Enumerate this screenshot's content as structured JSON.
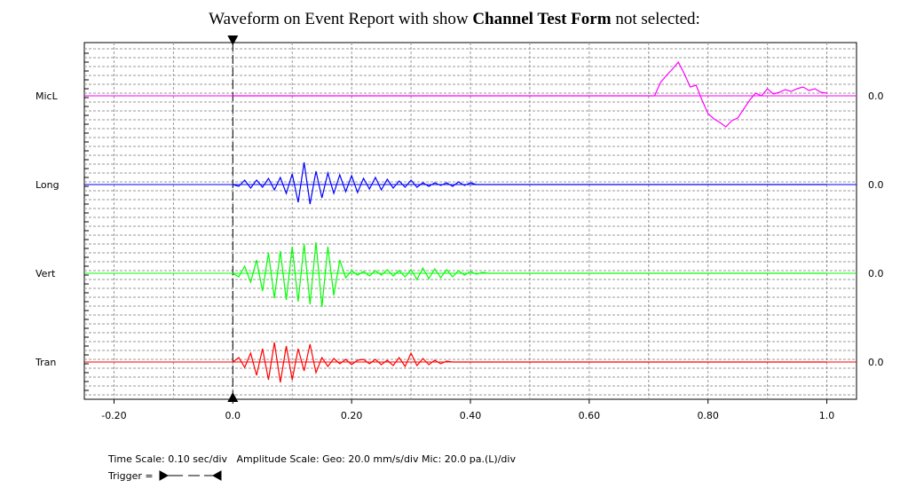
{
  "chart_data": {
    "type": "line",
    "title_parts": [
      "Waveform on Event Report with show ",
      "Channel Test Form",
      " not selected:"
    ],
    "x": [
      0,
      0.01,
      0.02,
      0.03,
      0.04,
      0.05,
      0.06,
      0.07,
      0.08,
      0.09,
      0.1,
      0.11,
      0.12,
      0.13,
      0.14,
      0.15,
      0.16,
      0.17,
      0.18,
      0.19,
      0.2,
      0.21,
      0.22,
      0.23,
      0.24,
      0.25,
      0.26,
      0.27,
      0.28,
      0.29,
      0.3,
      0.31,
      0.32,
      0.33,
      0.34,
      0.35,
      0.36,
      0.37,
      0.38,
      0.39,
      0.4,
      0.41,
      0.42,
      0.43,
      0.44,
      0.45,
      0.46,
      0.47,
      0.48,
      0.49,
      0.5,
      0.51,
      0.52,
      0.53,
      0.54,
      0.55,
      0.56,
      0.57,
      0.58,
      0.59,
      0.6,
      0.61,
      0.62,
      0.63,
      0.64,
      0.65,
      0.66,
      0.67,
      0.68,
      0.69,
      0.7,
      0.71,
      0.72,
      0.73,
      0.74,
      0.75,
      0.76,
      0.77,
      0.78,
      0.79,
      0.8,
      0.81,
      0.82,
      0.83,
      0.84,
      0.85,
      0.86,
      0.87,
      0.88,
      0.89,
      0.9,
      0.91,
      0.92,
      0.93,
      0.94,
      0.95,
      0.96,
      0.97,
      0.98,
      0.99,
      1.0
    ],
    "xlim": [
      -0.25,
      1.05
    ],
    "xticks": [
      {
        "value": -0.2,
        "label": "-0.20"
      },
      {
        "value": 0,
        "label": "0.0"
      },
      {
        "value": 0.2,
        "label": "0.20"
      },
      {
        "value": 0.4,
        "label": "0.40"
      },
      {
        "value": 0.6,
        "label": "0.60"
      },
      {
        "value": 0.8,
        "label": "0.80"
      },
      {
        "value": 1.0,
        "label": "1.0"
      }
    ],
    "xgrid": [
      -0.2,
      -0.1,
      0,
      0.1,
      0.2,
      0.3,
      0.4,
      0.5,
      0.6,
      0.7,
      0.8,
      0.9,
      1.0
    ],
    "ylim": [
      -100,
      100
    ],
    "trigger": 0,
    "baseline": {
      "value": 0,
      "label": "0.0"
    },
    "series": [
      {
        "name": "MicL",
        "color": "#ff00ff",
        "values": [
          0,
          0,
          0,
          0,
          0,
          0,
          0,
          0,
          0,
          0,
          0,
          0,
          0,
          0,
          0,
          0,
          0,
          0,
          0,
          0,
          0,
          0,
          0,
          0,
          0,
          0,
          0,
          0,
          0,
          0,
          0,
          0,
          0,
          0,
          0,
          0,
          0,
          0,
          0,
          0,
          0,
          0,
          0,
          0,
          0,
          0,
          0,
          0,
          0,
          0,
          0,
          0,
          0,
          0,
          0,
          0,
          0,
          0,
          0,
          0,
          0,
          0,
          0,
          0,
          0,
          0,
          0,
          0,
          0,
          0,
          0,
          0,
          30,
          46,
          60,
          76,
          50,
          20,
          24,
          -10,
          -40,
          -52,
          -60,
          -70,
          -56,
          -50,
          -30,
          -10,
          6,
          0,
          16,
          4,
          8,
          14,
          10,
          16,
          20,
          12,
          16,
          8,
          6
        ]
      },
      {
        "name": "Long",
        "color": "#0000ff",
        "values": [
          0,
          -4,
          10,
          -8,
          10,
          -6,
          14,
          -12,
          16,
          -20,
          24,
          -40,
          50,
          -44,
          30,
          -30,
          26,
          -20,
          22,
          -16,
          20,
          -18,
          14,
          -10,
          16,
          -12,
          12,
          -8,
          8,
          -6,
          10,
          -6,
          4,
          -4,
          4,
          -2,
          4,
          -4,
          6,
          -2,
          4,
          0,
          0,
          0,
          0,
          0,
          0,
          0,
          0,
          0,
          0,
          0,
          0,
          0,
          0,
          0,
          0,
          0,
          0,
          0,
          0,
          0,
          0,
          0,
          0,
          0,
          0,
          0,
          0,
          0,
          0,
          0,
          0,
          0,
          0,
          0,
          0,
          0,
          0,
          0,
          0,
          0,
          0,
          0,
          0,
          0,
          0,
          0,
          0,
          0,
          0,
          0,
          0,
          0,
          0,
          0,
          0,
          0,
          0,
          0,
          0
        ]
      },
      {
        "name": "Vert",
        "color": "#00ff00",
        "values": [
          0,
          -8,
          16,
          -20,
          30,
          -40,
          46,
          -56,
          50,
          -60,
          60,
          -64,
          66,
          -70,
          70,
          -76,
          60,
          -50,
          30,
          -10,
          6,
          -4,
          4,
          -6,
          6,
          -4,
          8,
          -6,
          6,
          -8,
          8,
          -14,
          12,
          -12,
          10,
          -10,
          8,
          -8,
          6,
          -4,
          4,
          -2,
          2,
          0,
          0,
          0,
          0,
          0,
          0,
          0,
          0,
          0,
          0,
          0,
          0,
          0,
          0,
          0,
          0,
          0,
          0,
          0,
          0,
          0,
          0,
          0,
          0,
          0,
          0,
          0,
          0,
          0,
          0,
          0,
          0,
          0,
          0,
          0,
          0,
          0,
          0,
          0,
          0,
          0,
          0,
          0,
          0,
          0,
          0,
          0,
          0,
          0,
          0,
          0,
          0,
          0,
          0,
          0,
          0,
          0,
          0
        ]
      },
      {
        "name": "Tran",
        "color": "#ff0000",
        "values": [
          0,
          10,
          -12,
          20,
          -30,
          30,
          -40,
          44,
          -46,
          36,
          -40,
          30,
          -20,
          40,
          -24,
          10,
          -10,
          8,
          -4,
          6,
          -6,
          4,
          6,
          -4,
          6,
          -6,
          4,
          -8,
          10,
          -10,
          20,
          -8,
          8,
          -6,
          4,
          -4,
          2,
          0,
          0,
          0,
          0,
          0,
          0,
          0,
          0,
          0,
          0,
          0,
          0,
          0,
          0,
          0,
          0,
          0,
          0,
          0,
          0,
          0,
          0,
          0,
          0,
          0,
          0,
          0,
          0,
          0,
          0,
          0,
          0,
          0,
          0,
          0,
          0,
          0,
          0,
          0,
          0,
          0,
          0,
          0,
          0,
          0,
          0,
          0,
          0,
          0,
          0,
          0,
          0,
          0,
          0,
          0,
          0,
          0,
          0,
          0,
          0,
          0,
          0,
          0,
          0
        ]
      }
    ],
    "footer": "Time Scale: 0.10 sec/div   Amplitude Scale: Geo: 20.0 mm/s/div Mic: 20.0 pa.(L)/div",
    "trigger_legend": "Trigger ="
  }
}
